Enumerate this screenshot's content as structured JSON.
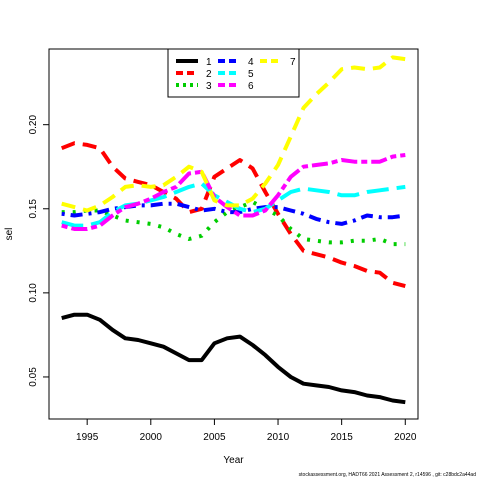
{
  "chart_data": {
    "type": "line",
    "xlabel": "Year",
    "ylabel": "sel",
    "xlim": [
      1992,
      2021
    ],
    "ylim": [
      0.025,
      0.245
    ],
    "xticks": [
      1995,
      2000,
      2005,
      2010,
      2015,
      2020
    ],
    "yticks": [
      0.05,
      0.1,
      0.15,
      0.2
    ],
    "ytick_labels": [
      "0.05",
      "0.10",
      "0.15",
      "0.20"
    ],
    "legend_position": "top-center",
    "x": [
      1993,
      1994,
      1995,
      1996,
      1997,
      1998,
      1999,
      2000,
      2001,
      2002,
      2003,
      2004,
      2005,
      2006,
      2007,
      2008,
      2009,
      2010,
      2011,
      2012,
      2013,
      2014,
      2015,
      2016,
      2017,
      2018,
      2019,
      2020
    ],
    "series": [
      {
        "name": "1",
        "color": "#000000",
        "dash": "solid",
        "values": [
          0.085,
          0.087,
          0.087,
          0.084,
          0.078,
          0.073,
          0.072,
          0.07,
          0.068,
          0.064,
          0.06,
          0.06,
          0.07,
          0.073,
          0.074,
          0.069,
          0.063,
          0.056,
          0.05,
          0.046,
          0.045,
          0.044,
          0.042,
          0.041,
          0.039,
          0.038,
          0.036,
          0.035
        ]
      },
      {
        "name": "2",
        "color": "#ff0000",
        "dash": "dashed",
        "values": [
          0.186,
          0.189,
          0.188,
          0.186,
          0.175,
          0.168,
          0.166,
          0.164,
          0.16,
          0.156,
          0.148,
          0.15,
          0.169,
          0.174,
          0.179,
          0.174,
          0.16,
          0.147,
          0.135,
          0.125,
          0.123,
          0.121,
          0.118,
          0.116,
          0.113,
          0.112,
          0.106,
          0.104
        ]
      },
      {
        "name": "3",
        "color": "#00cd00",
        "dash": "dotted",
        "values": [
          0.148,
          0.148,
          0.149,
          0.149,
          0.146,
          0.143,
          0.142,
          0.141,
          0.139,
          0.135,
          0.132,
          0.134,
          0.142,
          0.148,
          0.151,
          0.154,
          0.15,
          0.146,
          0.138,
          0.132,
          0.131,
          0.13,
          0.13,
          0.131,
          0.131,
          0.132,
          0.129,
          0.129
        ]
      },
      {
        "name": "4",
        "color": "#0000ff",
        "dash": "dotdash",
        "values": [
          0.147,
          0.146,
          0.147,
          0.148,
          0.15,
          0.151,
          0.152,
          0.152,
          0.153,
          0.153,
          0.151,
          0.149,
          0.15,
          0.148,
          0.148,
          0.15,
          0.151,
          0.151,
          0.149,
          0.147,
          0.144,
          0.142,
          0.141,
          0.143,
          0.146,
          0.145,
          0.145,
          0.146
        ]
      },
      {
        "name": "5",
        "color": "#00ffff",
        "dash": "longdash",
        "values": [
          0.142,
          0.14,
          0.14,
          0.142,
          0.148,
          0.152,
          0.153,
          0.155,
          0.157,
          0.16,
          0.163,
          0.165,
          0.158,
          0.154,
          0.15,
          0.148,
          0.15,
          0.155,
          0.16,
          0.162,
          0.161,
          0.16,
          0.158,
          0.158,
          0.16,
          0.161,
          0.162,
          0.163
        ]
      },
      {
        "name": "6",
        "color": "#ff00ff",
        "dash": "twodash",
        "values": [
          0.14,
          0.138,
          0.138,
          0.14,
          0.146,
          0.151,
          0.153,
          0.156,
          0.16,
          0.163,
          0.171,
          0.172,
          0.157,
          0.151,
          0.146,
          0.146,
          0.149,
          0.158,
          0.169,
          0.175,
          0.176,
          0.177,
          0.179,
          0.178,
          0.178,
          0.178,
          0.181,
          0.182
        ]
      },
      {
        "name": "7",
        "color": "#ffff00",
        "dash": "dashed",
        "values": [
          0.153,
          0.151,
          0.149,
          0.152,
          0.157,
          0.163,
          0.164,
          0.163,
          0.164,
          0.169,
          0.175,
          0.172,
          0.155,
          0.152,
          0.152,
          0.156,
          0.165,
          0.176,
          0.193,
          0.21,
          0.218,
          0.225,
          0.233,
          0.234,
          0.233,
          0.234,
          0.24,
          0.239
        ]
      }
    ]
  },
  "footnote": "stockassessment.org, HADT66 2021 Assessment 2, r14596 , git: c28bdc2a44ad"
}
